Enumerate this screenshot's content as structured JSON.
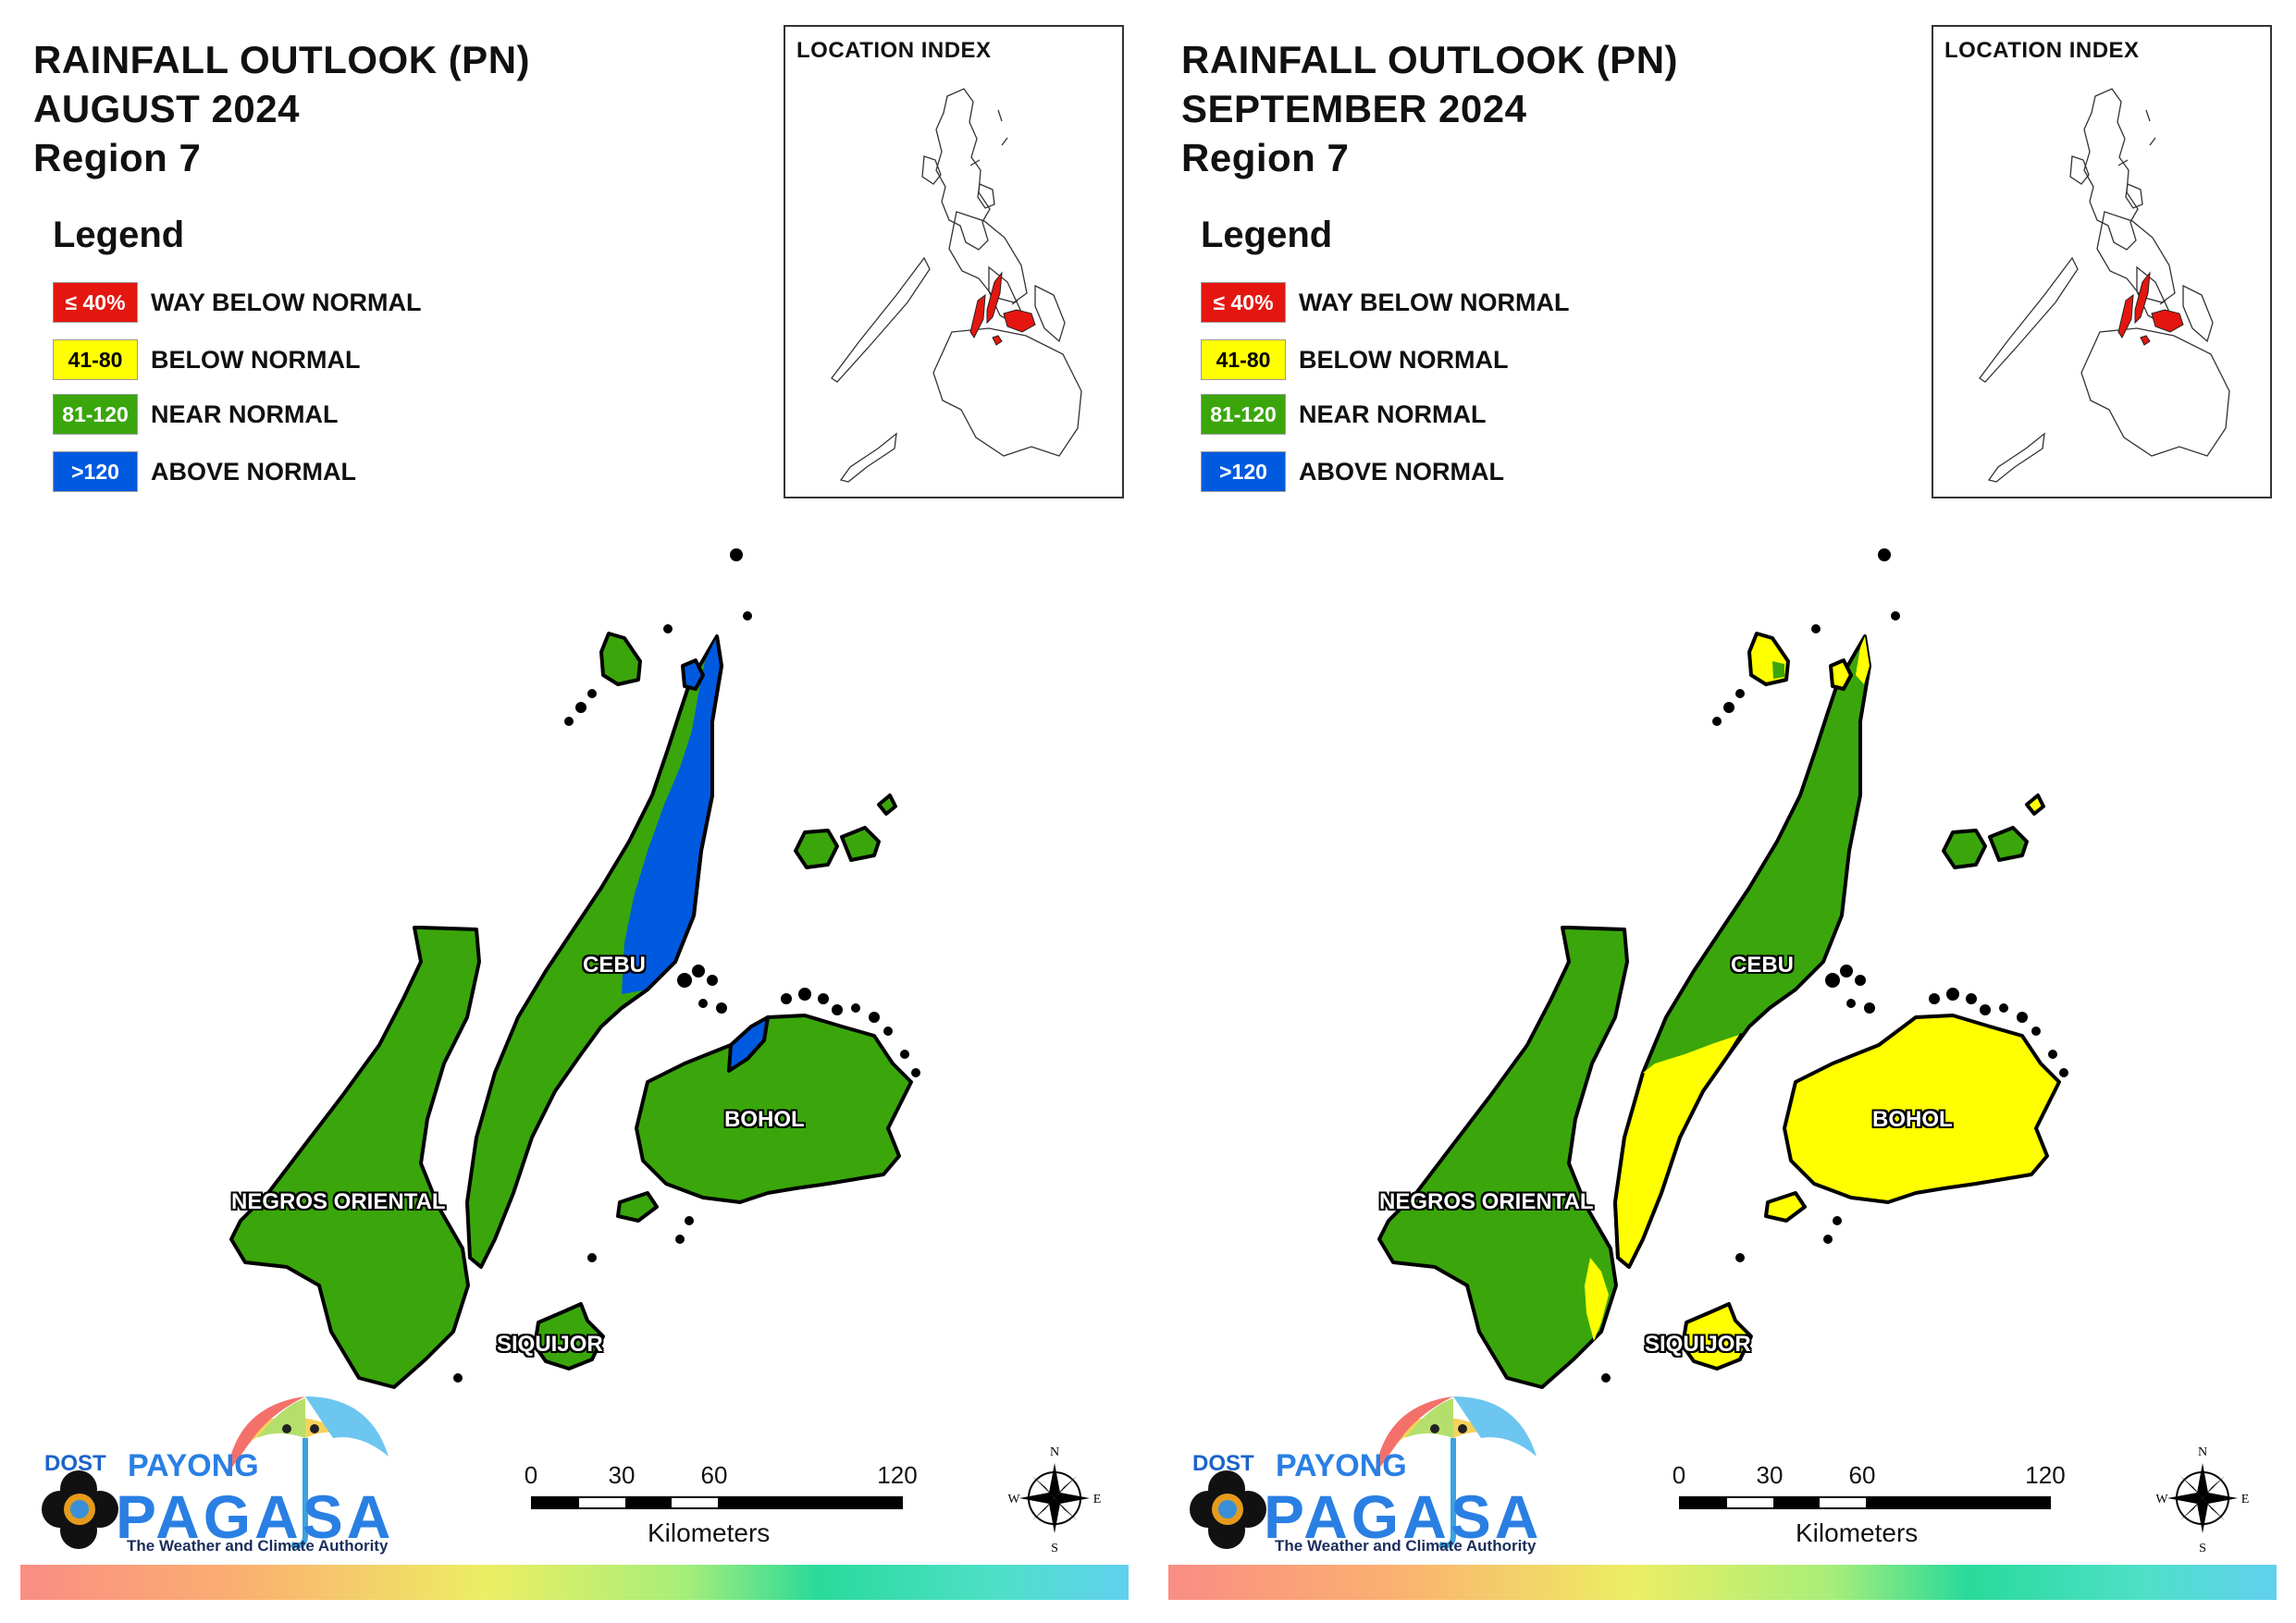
{
  "panels": [
    {
      "title": [
        "RAINFALL OUTLOOK (PN)",
        "AUGUST 2024",
        "Region 7"
      ],
      "legend_title": "Legend",
      "legend": [
        {
          "swatch": "≤ 40%",
          "label": "WAY BELOW NORMAL",
          "color": "#e4160f"
        },
        {
          "swatch": "41-80",
          "label": "BELOW NORMAL",
          "color": "#ffff00"
        },
        {
          "swatch": "81-120",
          "label": "NEAR NORMAL",
          "color": "#3aa60b"
        },
        {
          "swatch": ">120",
          "label": "ABOVE NORMAL",
          "color": "#005ae0"
        }
      ],
      "location_index_title": "LOCATION INDEX",
      "places": {
        "cebu": "CEBU",
        "bohol": "BOHOL",
        "negros": "NEGROS ORIENTAL",
        "siquijor": "SIQUIJOR"
      },
      "region_categories": {
        "negros_oriental": "NEAR NORMAL",
        "siquijor": "NEAR NORMAL",
        "bohol": "NEAR NORMAL",
        "cebu_south": "NEAR NORMAL",
        "cebu_northeast": "ABOVE NORMAL",
        "bantayan": "NEAR NORMAL",
        "camotes": "NEAR NORMAL"
      }
    },
    {
      "title": [
        "RAINFALL OUTLOOK (PN)",
        "SEPTEMBER 2024",
        "Region 7"
      ],
      "legend_title": "Legend",
      "legend": [
        {
          "swatch": "≤ 40%",
          "label": "WAY BELOW NORMAL",
          "color": "#e4160f"
        },
        {
          "swatch": "41-80",
          "label": "BELOW NORMAL",
          "color": "#ffff00"
        },
        {
          "swatch": "81-120",
          "label": "NEAR NORMAL",
          "color": "#3aa60b"
        },
        {
          "swatch": ">120",
          "label": "ABOVE NORMAL",
          "color": "#005ae0"
        }
      ],
      "location_index_title": "LOCATION INDEX",
      "places": {
        "cebu": "CEBU",
        "bohol": "BOHOL",
        "negros": "NEGROS ORIENTAL",
        "siquijor": "SIQUIJOR"
      },
      "region_categories": {
        "negros_oriental": "NEAR NORMAL",
        "siquijor": "BELOW NORMAL",
        "bohol": "BELOW NORMAL",
        "cebu_south": "BELOW NORMAL",
        "cebu_northeast": "NEAR NORMAL",
        "bantayan": "BELOW NORMAL",
        "camotes": "NEAR NORMAL"
      }
    }
  ],
  "footer": {
    "logo_dost": "DOST",
    "logo_payong": "PAYONG",
    "logo_pagasa": "PAGASA",
    "logo_tagline": "The Weather and Climate Authority",
    "scale_ticks": [
      "0",
      "30",
      "60",
      "120"
    ],
    "scale_unit": "Kilometers",
    "compass": {
      "n": "N",
      "s": "S",
      "e": "E",
      "w": "W"
    }
  },
  "colors": {
    "way_below": "#e4160f",
    "below": "#ffff00",
    "near": "#3aa60b",
    "above": "#005ae0"
  }
}
